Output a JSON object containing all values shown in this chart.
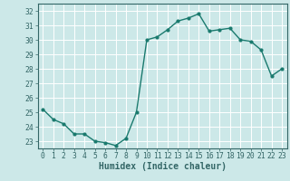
{
  "x": [
    0,
    1,
    2,
    3,
    4,
    5,
    6,
    7,
    8,
    9,
    10,
    11,
    12,
    13,
    14,
    15,
    16,
    17,
    18,
    19,
    20,
    21,
    22,
    23
  ],
  "y": [
    25.2,
    24.5,
    24.2,
    23.5,
    23.5,
    23.0,
    22.9,
    22.7,
    23.2,
    25.0,
    30.0,
    30.2,
    30.7,
    31.3,
    31.5,
    31.8,
    30.6,
    30.7,
    30.8,
    30.0,
    29.9,
    29.3,
    27.5,
    28.0
  ],
  "xlabel": "Humidex (Indice chaleur)",
  "ylim": [
    22.5,
    32.5
  ],
  "xlim": [
    -0.5,
    23.5
  ],
  "yticks": [
    23,
    24,
    25,
    26,
    27,
    28,
    29,
    30,
    31,
    32
  ],
  "xticks": [
    0,
    1,
    2,
    3,
    4,
    5,
    6,
    7,
    8,
    9,
    10,
    11,
    12,
    13,
    14,
    15,
    16,
    17,
    18,
    19,
    20,
    21,
    22,
    23
  ],
  "line_color": "#1a7a6e",
  "marker": "o",
  "marker_size": 2.0,
  "line_width": 1.0,
  "bg_color": "#cce8e8",
  "grid_color": "#ffffff",
  "tick_label_fontsize": 5.8,
  "xlabel_fontsize": 7.0,
  "spine_color": "#336666"
}
